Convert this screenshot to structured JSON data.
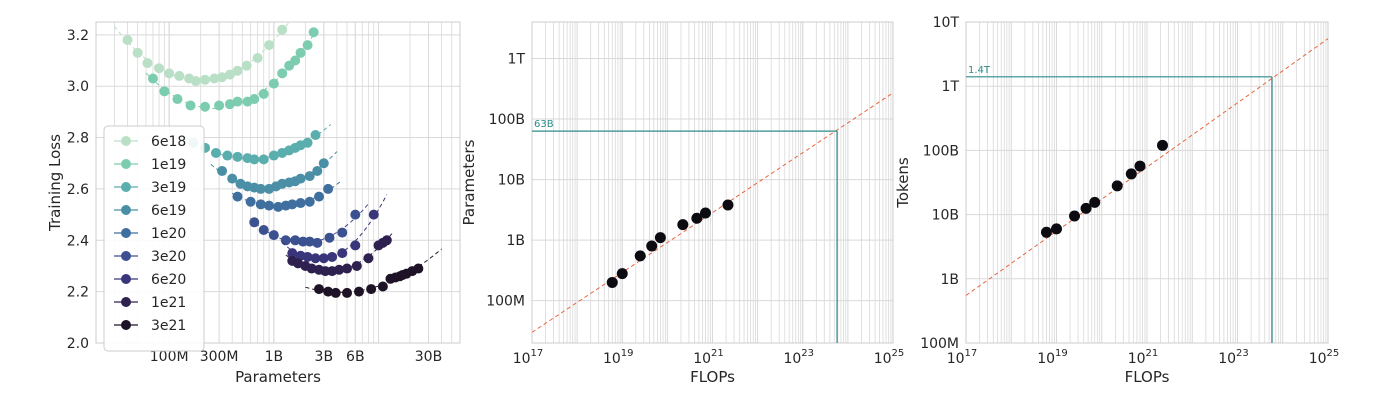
{
  "chart_data": [
    {
      "type": "scatter",
      "xlabel": "Parameters",
      "ylabel": "Training Loss",
      "xscale": "log",
      "xlim": [
        20000000,
        60000000000
      ],
      "ylim": [
        2.0,
        3.25
      ],
      "x_ticks": [
        {
          "v": 100000000,
          "label": "100M"
        },
        {
          "v": 300000000,
          "label": "300M"
        },
        {
          "v": 1000000000,
          "label": "1B"
        },
        {
          "v": 3000000000,
          "label": "3B"
        },
        {
          "v": 6000000000,
          "label": "6B"
        },
        {
          "v": 30000000000,
          "label": "30B"
        }
      ],
      "y_ticks": [
        {
          "v": 2.0,
          "label": "2.0"
        },
        {
          "v": 2.2,
          "label": "2.2"
        },
        {
          "v": 2.4,
          "label": "2.4"
        },
        {
          "v": 2.6,
          "label": "2.6"
        },
        {
          "v": 2.8,
          "label": "2.8"
        },
        {
          "v": 3.0,
          "label": "3.0"
        },
        {
          "v": 3.2,
          "label": "3.2"
        }
      ],
      "grid": true,
      "legend_position": "lower-left",
      "series": [
        {
          "name": "6e18",
          "color": "#b9e0c6",
          "fit_range": [
            30000000,
            2500000000
          ],
          "points": [
            [
              40000000,
              3.18
            ],
            [
              50000000,
              3.13
            ],
            [
              62000000,
              3.09
            ],
            [
              80000000,
              3.07
            ],
            [
              100000000,
              3.05
            ],
            [
              125000000,
              3.04
            ],
            [
              155000000,
              3.03
            ],
            [
              180000000,
              3.02
            ],
            [
              220000000,
              3.025
            ],
            [
              270000000,
              3.03
            ],
            [
              320000000,
              3.035
            ],
            [
              380000000,
              3.045
            ],
            [
              450000000,
              3.06
            ],
            [
              550000000,
              3.08
            ],
            [
              700000000,
              3.11
            ],
            [
              900000000,
              3.16
            ],
            [
              1200000000,
              3.22
            ]
          ]
        },
        {
          "name": "1e19",
          "color": "#7ccdaf",
          "fit_range": [
            60000000,
            2500000000
          ],
          "points": [
            [
              70000000,
              3.03
            ],
            [
              90000000,
              2.98
            ],
            [
              120000000,
              2.95
            ],
            [
              160000000,
              2.925
            ],
            [
              220000000,
              2.92
            ],
            [
              300000000,
              2.925
            ],
            [
              380000000,
              2.93
            ],
            [
              450000000,
              2.94
            ],
            [
              560000000,
              2.94
            ],
            [
              650000000,
              2.95
            ],
            [
              800000000,
              2.97
            ],
            [
              1000000000,
              3.01
            ],
            [
              1200000000,
              3.05
            ],
            [
              1400000000,
              3.08
            ],
            [
              1600000000,
              3.1
            ],
            [
              1800000000,
              3.13
            ],
            [
              2100000000,
              3.16
            ],
            [
              2400000000,
              3.21
            ]
          ]
        },
        {
          "name": "3e19",
          "color": "#5aaeae",
          "fit_range": [
            150000000,
            3500000000
          ],
          "points": [
            [
              170000000,
              2.78
            ],
            [
              220000000,
              2.76
            ],
            [
              280000000,
              2.74
            ],
            [
              360000000,
              2.73
            ],
            [
              450000000,
              2.725
            ],
            [
              560000000,
              2.72
            ],
            [
              650000000,
              2.715
            ],
            [
              800000000,
              2.715
            ],
            [
              1000000000,
              2.73
            ],
            [
              1200000000,
              2.74
            ],
            [
              1400000000,
              2.75
            ],
            [
              1600000000,
              2.76
            ],
            [
              1800000000,
              2.77
            ],
            [
              2100000000,
              2.78
            ],
            [
              2500000000,
              2.81
            ]
          ]
        },
        {
          "name": "6e19",
          "color": "#4b8fa6",
          "fit_range": [
            250000000,
            4000000000
          ],
          "points": [
            [
              320000000,
              2.67
            ],
            [
              400000000,
              2.64
            ],
            [
              480000000,
              2.62
            ],
            [
              560000000,
              2.61
            ],
            [
              650000000,
              2.605
            ],
            [
              750000000,
              2.6
            ],
            [
              900000000,
              2.6
            ],
            [
              1050000000,
              2.61
            ],
            [
              1200000000,
              2.62
            ],
            [
              1400000000,
              2.625
            ],
            [
              1600000000,
              2.63
            ],
            [
              1800000000,
              2.64
            ],
            [
              2200000000,
              2.65
            ],
            [
              2600000000,
              2.67
            ],
            [
              3000000000,
              2.7
            ]
          ]
        },
        {
          "name": "1e20",
          "color": "#3f6f9f",
          "fit_range": [
            400000000,
            4500000000
          ],
          "points": [
            [
              450000000,
              2.57
            ],
            [
              600000000,
              2.55
            ],
            [
              750000000,
              2.54
            ],
            [
              900000000,
              2.535
            ],
            [
              1100000000,
              2.53
            ],
            [
              1300000000,
              2.535
            ],
            [
              1500000000,
              2.54
            ],
            [
              1800000000,
              2.545
            ],
            [
              2200000000,
              2.55
            ],
            [
              2700000000,
              2.57
            ],
            [
              3300000000,
              2.6
            ]
          ]
        },
        {
          "name": "3e20",
          "color": "#3c5190",
          "fit_range": [
            600000000,
            8000000000
          ],
          "points": [
            [
              650000000,
              2.47
            ],
            [
              800000000,
              2.44
            ],
            [
              1000000000,
              2.42
            ],
            [
              1300000000,
              2.4
            ],
            [
              1600000000,
              2.4
            ],
            [
              1900000000,
              2.395
            ],
            [
              2200000000,
              2.395
            ],
            [
              2600000000,
              2.39
            ],
            [
              3400000000,
              2.41
            ],
            [
              4500000000,
              2.43
            ],
            [
              6000000000,
              2.5
            ]
          ]
        },
        {
          "name": "6e20",
          "color": "#39357a",
          "fit_range": [
            1200000000,
            12000000000
          ],
          "points": [
            [
              1500000000,
              2.35
            ],
            [
              1800000000,
              2.34
            ],
            [
              2100000000,
              2.335
            ],
            [
              2500000000,
              2.33
            ],
            [
              3000000000,
              2.33
            ],
            [
              3600000000,
              2.335
            ],
            [
              4500000000,
              2.35
            ],
            [
              6000000000,
              2.38
            ],
            [
              9000000000,
              2.5
            ]
          ]
        },
        {
          "name": "1e21",
          "color": "#2e2150",
          "fit_range": [
            1300000000,
            14000000000
          ],
          "points": [
            [
              1500000000,
              2.32
            ],
            [
              1700000000,
              2.31
            ],
            [
              2000000000,
              2.3
            ],
            [
              2300000000,
              2.29
            ],
            [
              2700000000,
              2.285
            ],
            [
              3100000000,
              2.28
            ],
            [
              3600000000,
              2.28
            ],
            [
              4200000000,
              2.285
            ],
            [
              5000000000,
              2.29
            ],
            [
              6200000000,
              2.3
            ],
            [
              8000000000,
              2.33
            ],
            [
              10000000000,
              2.38
            ],
            [
              11000000000,
              2.39
            ],
            [
              12000000000,
              2.4
            ]
          ]
        },
        {
          "name": "3e21",
          "color": "#1e1226",
          "fit_range": [
            2000000000,
            40000000000
          ],
          "points": [
            [
              2700000000,
              2.21
            ],
            [
              3300000000,
              2.2
            ],
            [
              3900000000,
              2.195
            ],
            [
              5000000000,
              2.195
            ],
            [
              6500000000,
              2.2
            ],
            [
              8500000000,
              2.21
            ],
            [
              11000000000,
              2.22
            ],
            [
              13000000000,
              2.25
            ],
            [
              14500000000,
              2.255
            ],
            [
              16000000000,
              2.26
            ],
            [
              17000000000,
              2.265
            ],
            [
              18500000000,
              2.27
            ],
            [
              21000000000,
              2.28
            ],
            [
              24000000000,
              2.29
            ]
          ]
        }
      ]
    },
    {
      "type": "scatter",
      "xlabel": "FLOPs",
      "ylabel": "Parameters",
      "xscale": "log",
      "yscale": "log",
      "xlim": [
        1e+17,
        1e+25
      ],
      "ylim": [
        20000000,
        4000000000000
      ],
      "x_ticks": [
        {
          "v": 1e+17,
          "base": "10",
          "exp": "17"
        },
        {
          "v": 1e+19,
          "base": "10",
          "exp": "19"
        },
        {
          "v": 1e+21,
          "base": "10",
          "exp": "21"
        },
        {
          "v": 1e+23,
          "base": "10",
          "exp": "23"
        },
        {
          "v": 1e+25,
          "base": "10",
          "exp": "25"
        }
      ],
      "y_ticks": [
        {
          "v": 100000000,
          "label": "100M"
        },
        {
          "v": 1000000000,
          "label": "1B"
        },
        {
          "v": 10000000000,
          "label": "10B"
        },
        {
          "v": 100000000000,
          "label": "100B"
        },
        {
          "v": 1000000000000,
          "label": "1T"
        }
      ],
      "grid": true,
      "points": [
        [
          6e+18,
          200000000
        ],
        [
          1e+19,
          280000000
        ],
        [
          2.5e+19,
          550000000
        ],
        [
          4.5e+19,
          800000000
        ],
        [
          7e+19,
          1100000000
        ],
        [
          2.2e+20,
          1800000000
        ],
        [
          4.5e+20,
          2300000000
        ],
        [
          7e+20,
          2800000000
        ],
        [
          2.2e+21,
          3800000000
        ]
      ],
      "fit_line": {
        "points": [
          [
            1e+17,
            30000000
          ],
          [
            1e+25,
            270000000000
          ]
        ]
      },
      "projection": {
        "x": 5.76e+23,
        "y": 63000000000,
        "label": "63B"
      }
    },
    {
      "type": "scatter",
      "xlabel": "FLOPs",
      "ylabel": "Tokens",
      "xscale": "log",
      "yscale": "log",
      "xlim": [
        1e+17,
        1e+25
      ],
      "ylim": [
        100000000,
        10000000000000
      ],
      "x_ticks": [
        {
          "v": 1e+17,
          "base": "10",
          "exp": "17"
        },
        {
          "v": 1e+19,
          "base": "10",
          "exp": "19"
        },
        {
          "v": 1e+21,
          "base": "10",
          "exp": "21"
        },
        {
          "v": 1e+23,
          "base": "10",
          "exp": "23"
        },
        {
          "v": 1e+25,
          "base": "10",
          "exp": "25"
        }
      ],
      "y_ticks": [
        {
          "v": 100000000,
          "label": "100M"
        },
        {
          "v": 1000000000,
          "label": "1B"
        },
        {
          "v": 10000000000,
          "label": "10B"
        },
        {
          "v": 100000000000,
          "label": "100B"
        },
        {
          "v": 1000000000000,
          "label": "1T"
        },
        {
          "v": 10000000000000,
          "label": "10T"
        }
      ],
      "grid": true,
      "points": [
        [
          6e+18,
          5300000000
        ],
        [
          1e+19,
          6000000000
        ],
        [
          2.5e+19,
          9500000000
        ],
        [
          4.5e+19,
          12500000000
        ],
        [
          7e+19,
          15500000000
        ],
        [
          2.2e+20,
          28000000000
        ],
        [
          4.5e+20,
          43000000000
        ],
        [
          7e+20,
          57000000000
        ],
        [
          2.2e+21,
          120000000000
        ]
      ],
      "fit_line": {
        "points": [
          [
            1e+17,
            550000000
          ],
          [
            1e+25,
            5500000000000
          ]
        ]
      },
      "projection": {
        "x": 5.76e+23,
        "y": 1400000000000,
        "label": "1.4T"
      }
    }
  ]
}
